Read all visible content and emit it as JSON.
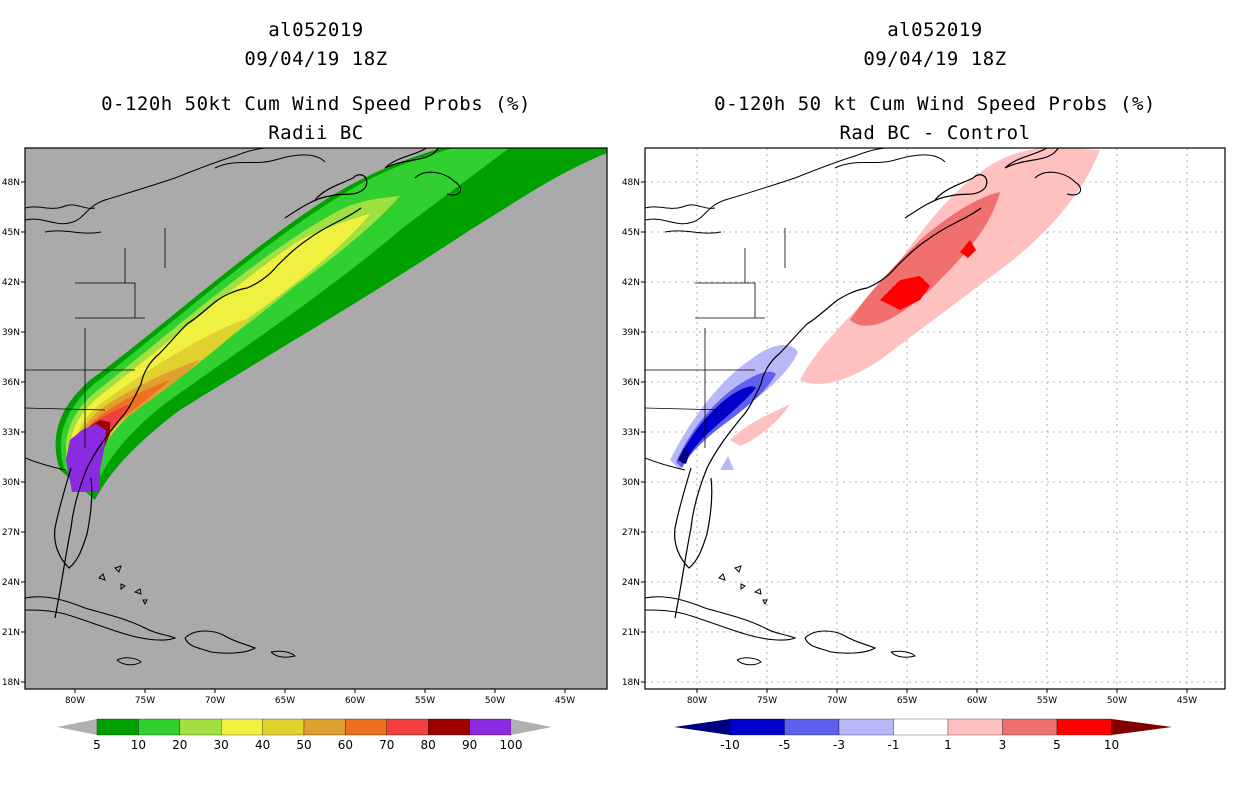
{
  "left_panel": {
    "storm_id": "al052019",
    "datetime": "09/04/19 18Z",
    "product": "0-120h 50kt Cum Wind Speed Probs (%)",
    "subtitle": "Radii BC",
    "colorbar": {
      "labels": [
        "5",
        "10",
        "20",
        "30",
        "40",
        "50",
        "60",
        "70",
        "80",
        "90",
        "100"
      ],
      "colors": [
        "#00a000",
        "#30d030",
        "#a0e040",
        "#f0f040",
        "#e0d030",
        "#e0a030",
        "#ee7020",
        "#f04040",
        "#a00000",
        "#8a2be2"
      ],
      "background": "#aaaaaa"
    }
  },
  "right_panel": {
    "storm_id": "al052019",
    "datetime": "09/04/19 18Z",
    "product": "0-120h 50 kt Cum Wind Speed Probs (%)",
    "subtitle": "Rad BC - Control",
    "colorbar": {
      "labels": [
        "-10",
        "-5",
        "-3",
        "-1",
        "1",
        "3",
        "5",
        "10"
      ],
      "colors": [
        "#0000cc",
        "#6060f0",
        "#b8b8f8",
        "#ffffff",
        "#ffc0c0",
        "#f07070",
        "#ff0000"
      ],
      "background": "#ffffff"
    }
  },
  "axes": {
    "lon_labels": [
      "80W",
      "75W",
      "70W",
      "65W",
      "60W",
      "55W",
      "50W",
      "45W"
    ],
    "lat_labels": [
      "48N",
      "45N",
      "42N",
      "39N",
      "36N",
      "33N",
      "30N",
      "27N",
      "24N",
      "21N",
      "18N"
    ]
  }
}
